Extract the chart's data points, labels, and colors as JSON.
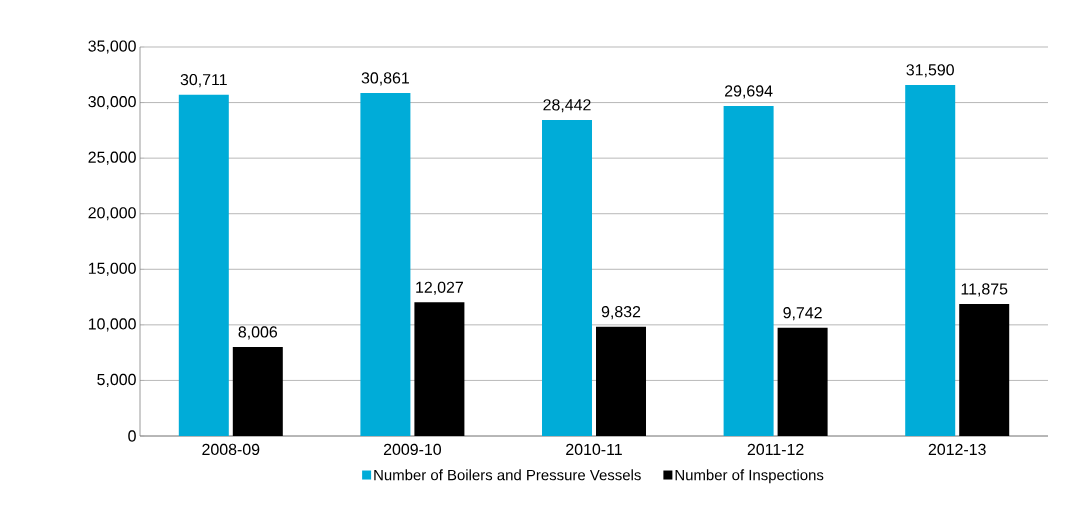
{
  "chart_data": {
    "type": "bar",
    "categories": [
      "2008-09",
      "2009-10",
      "2010-11",
      "2011-12",
      "2012-13"
    ],
    "series": [
      {
        "name": "Number of Boilers and Pressure Vessels",
        "color": "#00acd8",
        "values": [
          30711,
          30861,
          28442,
          29694,
          31590
        ],
        "value_labels": [
          "30,711",
          "30,861",
          "28,442",
          "29,694",
          "31,590"
        ]
      },
      {
        "name": "Number of Inspections",
        "color": "#000000",
        "values": [
          8006,
          12027,
          9832,
          9742,
          11875
        ],
        "value_labels": [
          "8,006",
          "12,027",
          "9,832",
          "9,742",
          "11,875"
        ]
      }
    ],
    "ylim": [
      0,
      35000
    ],
    "yticks": [
      {
        "value": 0,
        "label": "0"
      },
      {
        "value": 5000,
        "label": "5,000"
      },
      {
        "value": 10000,
        "label": "10,000"
      },
      {
        "value": 15000,
        "label": "15,000"
      },
      {
        "value": 20000,
        "label": "20,000"
      },
      {
        "value": 25000,
        "label": "25,000"
      },
      {
        "value": 30000,
        "label": "30,000"
      },
      {
        "value": 35000,
        "label": "35,000"
      }
    ],
    "grid": "y",
    "legend": "bottom"
  }
}
